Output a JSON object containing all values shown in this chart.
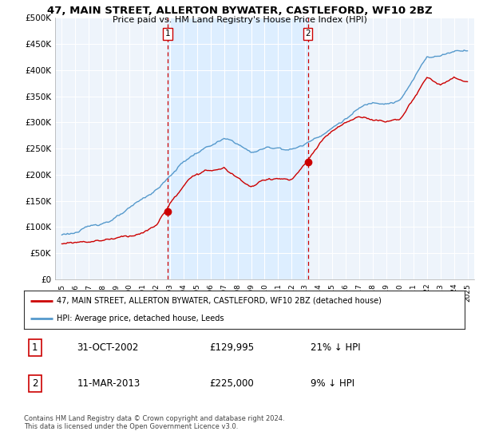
{
  "title": "47, MAIN STREET, ALLERTON BYWATER, CASTLEFORD, WF10 2BZ",
  "subtitle": "Price paid vs. HM Land Registry's House Price Index (HPI)",
  "legend_line1": "47, MAIN STREET, ALLERTON BYWATER, CASTLEFORD, WF10 2BZ (detached house)",
  "legend_line2": "HPI: Average price, detached house, Leeds",
  "transaction1_date": "31-OCT-2002",
  "transaction1_price": "£129,995",
  "transaction1_hpi": "21% ↓ HPI",
  "transaction2_date": "11-MAR-2013",
  "transaction2_price": "£225,000",
  "transaction2_hpi": "9% ↓ HPI",
  "footer": "Contains HM Land Registry data © Crown copyright and database right 2024.\nThis data is licensed under the Open Government Licence v3.0.",
  "red_color": "#cc0000",
  "blue_color": "#5599cc",
  "shade_color": "#ddeeff",
  "bg_color": "#eef4fb",
  "ylim_min": 0,
  "ylim_max": 500000,
  "yticks": [
    0,
    50000,
    100000,
    150000,
    200000,
    250000,
    300000,
    350000,
    400000,
    450000,
    500000
  ],
  "ytick_labels": [
    "£0",
    "£50K",
    "£100K",
    "£150K",
    "£200K",
    "£250K",
    "£300K",
    "£350K",
    "£400K",
    "£450K",
    "£500K"
  ],
  "transaction1_x": 2002.83,
  "transaction1_y": 129995,
  "transaction2_x": 2013.19,
  "transaction2_y": 225000,
  "xmin": 1994.5,
  "xmax": 2025.5,
  "hpi_years": [
    1995,
    1996,
    1997,
    1998,
    1999,
    2000,
    2001,
    2002,
    2003,
    2004,
    2005,
    2006,
    2007,
    2008,
    2009,
    2010,
    2011,
    2012,
    2013,
    2014,
    2015,
    2016,
    2017,
    2018,
    2019,
    2020,
    2021,
    2022,
    2023,
    2024,
    2025
  ],
  "hpi_vals": [
    85000,
    90000,
    97000,
    107000,
    118000,
    130000,
    147000,
    165000,
    190000,
    218000,
    235000,
    248000,
    258000,
    248000,
    230000,
    238000,
    240000,
    238000,
    247000,
    265000,
    282000,
    300000,
    318000,
    328000,
    333000,
    338000,
    375000,
    420000,
    422000,
    432000,
    437000
  ],
  "red_years": [
    1995,
    1996,
    1997,
    1998,
    1999,
    2000,
    2001,
    2002,
    2003,
    2004,
    2005,
    2006,
    2007,
    2008,
    2009,
    2010,
    2011,
    2012,
    2013,
    2014,
    2015,
    2016,
    2017,
    2018,
    2019,
    2020,
    2021,
    2022,
    2023,
    2024,
    2025
  ],
  "red_vals": [
    68000,
    72000,
    76000,
    80000,
    86000,
    92000,
    100000,
    112000,
    155000,
    185000,
    210000,
    215000,
    218000,
    200000,
    185000,
    196000,
    202000,
    198000,
    225000,
    260000,
    285000,
    298000,
    310000,
    308000,
    305000,
    312000,
    348000,
    388000,
    375000,
    385000,
    378000
  ]
}
